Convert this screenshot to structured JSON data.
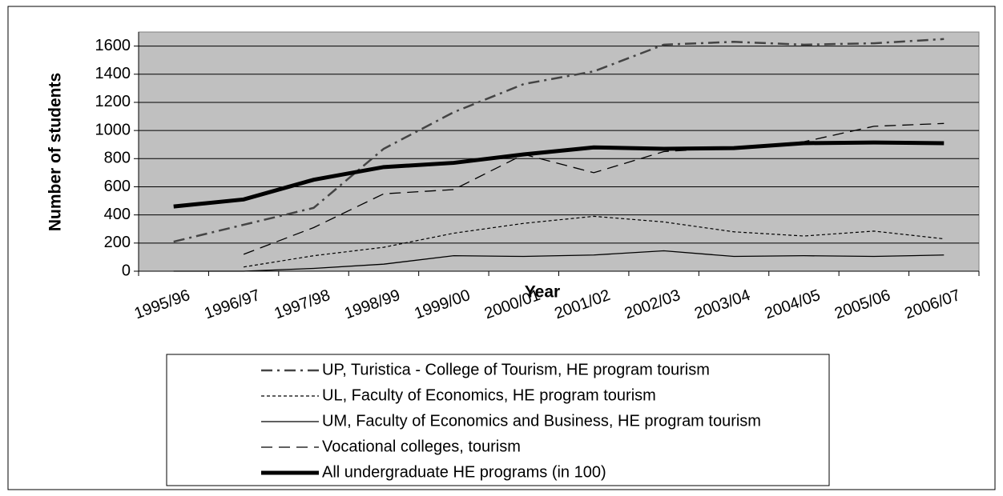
{
  "chart_data": {
    "type": "line",
    "ylabel": "Number of students",
    "xlabel": "Year",
    "categories": [
      "1995/96",
      "1996/97",
      "1997/98",
      "1998/99",
      "1999/00",
      "2000/01",
      "2001/02",
      "2002/03",
      "2003/04",
      "2004/05",
      "2005/06",
      "2006/07"
    ],
    "series": [
      {
        "name": "UP, Turistica - College of Tourism, HE program tourism",
        "color": "#444444",
        "width": 2.5,
        "dash": "14,6,3,6",
        "values": [
          210,
          330,
          450,
          870,
          1130,
          1330,
          1420,
          1610,
          1630,
          1610,
          1620,
          1650
        ]
      },
      {
        "name": "UL, Faculty of Economics, HE program tourism",
        "color": "#000000",
        "width": 1.2,
        "dash": "4,3",
        "values": [
          null,
          30,
          110,
          170,
          270,
          340,
          390,
          350,
          280,
          250,
          285,
          230
        ]
      },
      {
        "name": "UM, Faculty of Economics and Business, HE program tourism",
        "color": "#000000",
        "width": 1.3,
        "dash": "none",
        "values": [
          0,
          0,
          20,
          50,
          110,
          105,
          115,
          145,
          105,
          110,
          105,
          115
        ]
      },
      {
        "name": "Vocational colleges, tourism",
        "color": "#000000",
        "width": 1.3,
        "dash": "14,8",
        "values": [
          null,
          120,
          310,
          550,
          580,
          830,
          700,
          850,
          880,
          920,
          1030,
          1050
        ]
      },
      {
        "name": "All undergraduate HE programs (in 100)",
        "color": "#000000",
        "width": 5,
        "dash": "none",
        "values": [
          460,
          510,
          650,
          740,
          770,
          830,
          880,
          870,
          875,
          910,
          915,
          910
        ]
      }
    ],
    "ylim": [
      0,
      1700
    ],
    "yticks": [
      0,
      200,
      400,
      600,
      800,
      1000,
      1200,
      1400,
      1600
    ],
    "grid": true,
    "plot_background": "#c0c0c0"
  }
}
